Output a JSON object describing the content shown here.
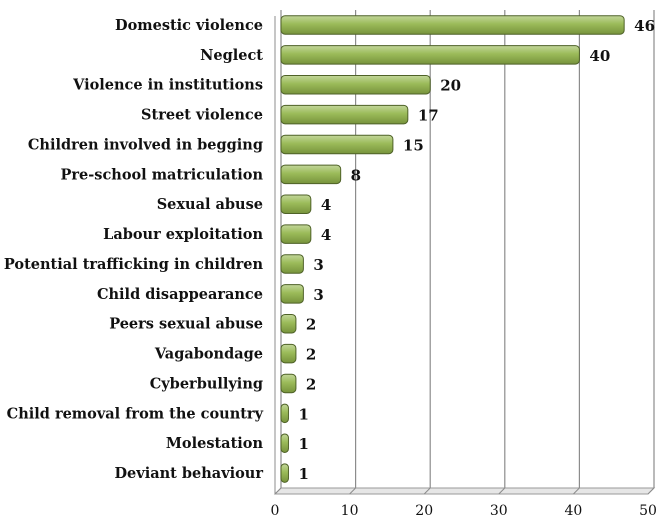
{
  "chart_data": {
    "type": "bar",
    "orientation": "horizontal",
    "categories": [
      "Domestic violence",
      "Neglect",
      "Violence in institutions",
      "Street violence",
      "Children involved in begging",
      "Pre-school matriculation",
      "Sexual abuse",
      "Labour exploitation",
      "Potential trafficking in children",
      "Child disappearance",
      "Peers sexual abuse",
      "Vagabondage",
      "Cyberbullying",
      "Child removal from the country",
      "Molestation",
      "Deviant behaviour"
    ],
    "values": [
      46,
      40,
      20,
      17,
      15,
      8,
      4,
      4,
      3,
      3,
      2,
      2,
      2,
      1,
      1,
      1
    ],
    "value_labels": [
      "46",
      "40",
      "20",
      "17",
      "15",
      "8",
      "4",
      "4",
      "3",
      "3",
      "2",
      "2",
      "2",
      "1",
      "1",
      "1"
    ],
    "xlim": [
      0,
      50
    ],
    "x_ticks": [
      "0",
      "10",
      "20",
      "30",
      "40",
      "50"
    ],
    "grid": "vertical",
    "bar_color": "#9BBB59",
    "bar_edge_color": "#4F6228"
  }
}
